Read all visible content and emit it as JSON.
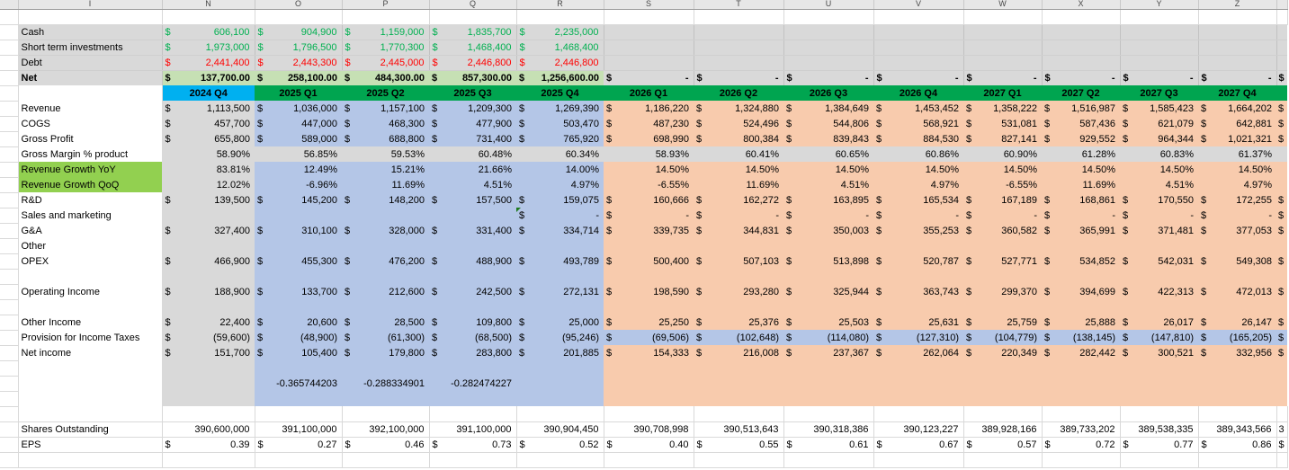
{
  "currency_symbol": "$",
  "colors": {
    "gray_block": "#D9D9D9",
    "blue_block": "#B4C6E7",
    "orange_block": "#F8CBAD",
    "header_blue": "#00B0F0",
    "header_green": "#00A550",
    "net_row_bg": "#C6E0B4",
    "label_green_bg": "#92D050",
    "positive_green_text": "#00B050",
    "negative_red_text": "#FF0000"
  },
  "column_letters": [
    "I",
    "N",
    "O",
    "P",
    "Q",
    "R",
    "S",
    "T",
    "U",
    "V",
    "W",
    "X",
    "Y",
    "Z"
  ],
  "quarter_headers": [
    "2024 Q4",
    "2025 Q1",
    "2025 Q2",
    "2025 Q3",
    "2025 Q4",
    "2026 Q1",
    "2026 Q2",
    "2026 Q3",
    "2026 Q4",
    "2027 Q1",
    "2027 Q2",
    "2027 Q3",
    "2027 Q4"
  ],
  "balance_rows": [
    {
      "label": "Cash",
      "color": "green",
      "values": [
        "606,100",
        "904,900",
        "1,159,000",
        "1,835,700",
        "2,235,000"
      ]
    },
    {
      "label": "Short term investments",
      "color": "green",
      "values": [
        "1,973,000",
        "1,796,500",
        "1,770,300",
        "1,468,400",
        "1,468,400"
      ]
    },
    {
      "label": "Debt",
      "color": "red",
      "values": [
        "2,441,400",
        "2,443,300",
        "2,445,000",
        "2,446,800",
        "2,446,800"
      ]
    }
  ],
  "net_row": {
    "label": "Net",
    "values": [
      "137,700.00",
      "258,100.00",
      "484,300.00",
      "857,300.00",
      "1,256,600.00"
    ],
    "dashes": [
      "-",
      "-",
      "-",
      "-",
      "-",
      "-",
      "-",
      "-"
    ],
    "tail": "$"
  },
  "body_rows": [
    {
      "label": "Revenue",
      "fmt": "money",
      "tail": "$",
      "cells": [
        "1,113,500",
        "1,036,000",
        "1,157,100",
        "1,209,300",
        "1,269,390",
        "1,186,220",
        "1,324,880",
        "1,384,649",
        "1,453,452",
        "1,358,222",
        "1,516,987",
        "1,585,423",
        "1,664,202"
      ]
    },
    {
      "label": "COGS",
      "fmt": "money",
      "tail": "$",
      "cells": [
        "457,700",
        "447,000",
        "468,300",
        "477,900",
        "503,470",
        "487,230",
        "524,496",
        "544,806",
        "568,921",
        "531,081",
        "587,436",
        "621,079",
        "642,881"
      ]
    },
    {
      "label": "Gross Profit",
      "fmt": "money",
      "tail": "$",
      "cells": [
        "655,800",
        "589,000",
        "688,800",
        "731,400",
        "765,920",
        "698,990",
        "800,384",
        "839,843",
        "884,530",
        "827,141",
        "929,552",
        "964,344",
        "1,021,321"
      ]
    },
    {
      "label": "Gross Margin % product",
      "fmt": "percent",
      "band": "gray",
      "tail": "",
      "cells": [
        "58.90%",
        "56.85%",
        "59.53%",
        "60.48%",
        "60.34%",
        "58.93%",
        "60.41%",
        "60.65%",
        "60.86%",
        "60.90%",
        "61.28%",
        "60.83%",
        "61.37%"
      ]
    },
    {
      "label": "Revenue Growth YoY",
      "fmt": "percent",
      "label_bg": "green",
      "tail": "",
      "cells": [
        "83.81%",
        "12.49%",
        "15.21%",
        "21.66%",
        "14.00%",
        "14.50%",
        "14.50%",
        "14.50%",
        "14.50%",
        "14.50%",
        "14.50%",
        "14.50%",
        "14.50%"
      ]
    },
    {
      "label": "Revenue Growth QoQ",
      "fmt": "percent",
      "label_bg": "green",
      "tail": "",
      "cells": [
        "12.02%",
        "-6.96%",
        "11.69%",
        "4.51%",
        "4.97%",
        "-6.55%",
        "11.69%",
        "4.51%",
        "4.97%",
        "-6.55%",
        "11.69%",
        "4.51%",
        "4.97%"
      ]
    },
    {
      "label": "R&D",
      "fmt": "money",
      "tail": "$",
      "cells": [
        "139,500",
        "145,200",
        "148,200",
        "157,500",
        "159,075",
        "160,666",
        "162,272",
        "163,895",
        "165,534",
        "167,189",
        "168,861",
        "170,550",
        "172,255"
      ]
    },
    {
      "label": "Sales and marketing",
      "fmt": "money",
      "tail": "$",
      "flag_col": 4,
      "cells": [
        "",
        "",
        "",
        "",
        "-",
        "-",
        "-",
        "-",
        "-",
        "-",
        "-",
        "-",
        "-"
      ]
    },
    {
      "label": "G&A",
      "fmt": "money",
      "tail": "$",
      "cells": [
        "327,400",
        "310,100",
        "328,000",
        "331,400",
        "334,714",
        "339,735",
        "344,831",
        "350,003",
        "355,253",
        "360,582",
        "365,991",
        "371,481",
        "377,053"
      ]
    },
    {
      "label": "Other",
      "fmt": "money",
      "tail": "",
      "cells": [
        "",
        "",
        "",
        "",
        "",
        "",
        "",
        "",
        "",
        "",
        "",
        "",
        ""
      ]
    },
    {
      "label": "OPEX",
      "fmt": "money",
      "tail": "$",
      "cells": [
        "466,900",
        "455,300",
        "476,200",
        "488,900",
        "493,789",
        "500,400",
        "507,103",
        "513,898",
        "520,787",
        "527,771",
        "534,852",
        "542,031",
        "549,308"
      ]
    },
    {
      "label": "",
      "fmt": "blank",
      "tail": "",
      "cells": [
        "",
        "",
        "",
        "",
        "",
        "",
        "",
        "",
        "",
        "",
        "",
        "",
        ""
      ]
    },
    {
      "label": "Operating Income",
      "fmt": "money",
      "tail": "$",
      "cells": [
        "188,900",
        "133,700",
        "212,600",
        "242,500",
        "272,131",
        "198,590",
        "293,280",
        "325,944",
        "363,743",
        "299,370",
        "394,699",
        "422,313",
        "472,013"
      ]
    },
    {
      "label": "",
      "fmt": "blank",
      "tail": "",
      "cells": [
        "",
        "",
        "",
        "",
        "",
        "",
        "",
        "",
        "",
        "",
        "",
        "",
        ""
      ]
    },
    {
      "label": "Other Income",
      "fmt": "money",
      "tail": "$",
      "cells": [
        "22,400",
        "20,600",
        "28,500",
        "109,800",
        "25,000",
        "25,250",
        "25,376",
        "25,503",
        "25,631",
        "25,759",
        "25,888",
        "26,017",
        "26,147"
      ]
    },
    {
      "label": "Provision for Income Taxes",
      "fmt": "money",
      "band": "blue",
      "tail": "$",
      "cells": [
        "(59,600)",
        "(48,900)",
        "(61,300)",
        "(68,500)",
        "(95,246)",
        "(69,506)",
        "(102,648)",
        "(114,080)",
        "(127,310)",
        "(104,779)",
        "(138,145)",
        "(147,810)",
        "(165,205)"
      ]
    },
    {
      "label": "Net income",
      "fmt": "money",
      "tail": "$",
      "cells": [
        "151,700",
        "105,400",
        "179,800",
        "283,800",
        "201,885",
        "154,333",
        "216,008",
        "237,367",
        "262,064",
        "220,349",
        "282,442",
        "300,521",
        "332,956"
      ]
    },
    {
      "label": "",
      "fmt": "blank",
      "tail": "",
      "cells": [
        "",
        "",
        "",
        "",
        "",
        "",
        "",
        "",
        "",
        "",
        "",
        "",
        ""
      ]
    },
    {
      "label": "",
      "fmt": "plain",
      "tail": "",
      "cells": [
        "",
        "-0.365744203",
        "-0.288334901",
        "-0.282474227",
        "",
        "",
        "",
        "",
        "",
        "",
        "",
        "",
        ""
      ]
    },
    {
      "label": "",
      "fmt": "blank",
      "tail": "",
      "cells": [
        "",
        "",
        "",
        "",
        "",
        "",
        "",
        "",
        "",
        "",
        "",
        "",
        ""
      ]
    }
  ],
  "bottom_rows": [
    {
      "label": "Shares Outstanding",
      "fmt": "plain",
      "tail": "3",
      "cells": [
        "390,600,000",
        "391,100,000",
        "392,100,000",
        "391,100,000",
        "390,904,450",
        "390,708,998",
        "390,513,643",
        "390,318,386",
        "390,123,227",
        "389,928,166",
        "389,733,202",
        "389,538,335",
        "389,343,566"
      ]
    },
    {
      "label": "EPS",
      "fmt": "money",
      "tail": "$",
      "cells": [
        "0.39",
        "0.27",
        "0.46",
        "0.73",
        "0.52",
        "0.40",
        "0.55",
        "0.61",
        "0.67",
        "0.57",
        "0.72",
        "0.77",
        "0.86"
      ]
    }
  ]
}
